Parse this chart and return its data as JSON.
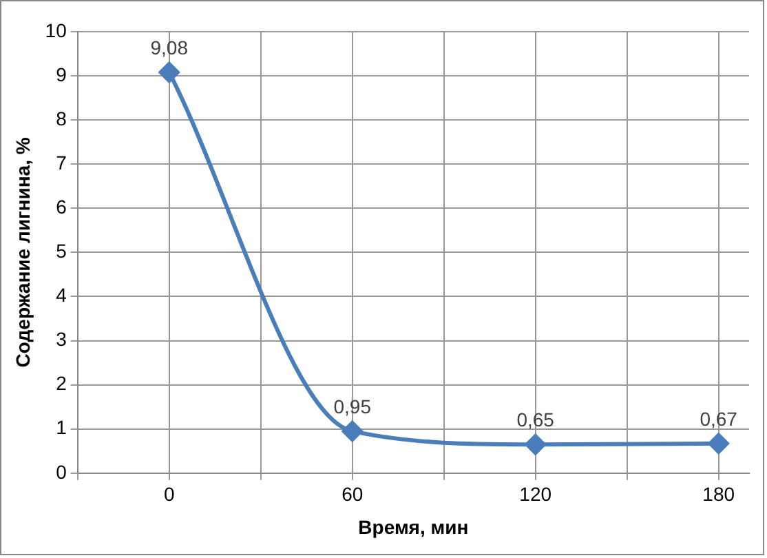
{
  "chart_data": {
    "type": "line",
    "xlabel": "Время, мин",
    "ylabel": "Содержание лигнина, %",
    "x": [
      0,
      60,
      120,
      180
    ],
    "series": [
      {
        "color": "#4a7ebb",
        "values": [
          9.08,
          0.95,
          0.65,
          0.67
        ],
        "value_labels": [
          "9,08",
          "0,95",
          "0,65",
          "0,67"
        ]
      }
    ],
    "xlim": [
      -30,
      190
    ],
    "xticks": [
      {
        "value": -30,
        "label": null
      },
      0,
      {
        "value": 30,
        "label": null
      },
      60,
      {
        "value": 90,
        "label": null
      },
      120,
      {
        "value": 150,
        "label": null
      },
      180
    ],
    "ylim": [
      0,
      10
    ],
    "yticks": [
      0,
      1,
      2,
      3,
      4,
      5,
      6,
      7,
      8,
      9,
      10
    ],
    "grid": true,
    "legend": false,
    "marker": "diamond",
    "line_style": "solid"
  }
}
